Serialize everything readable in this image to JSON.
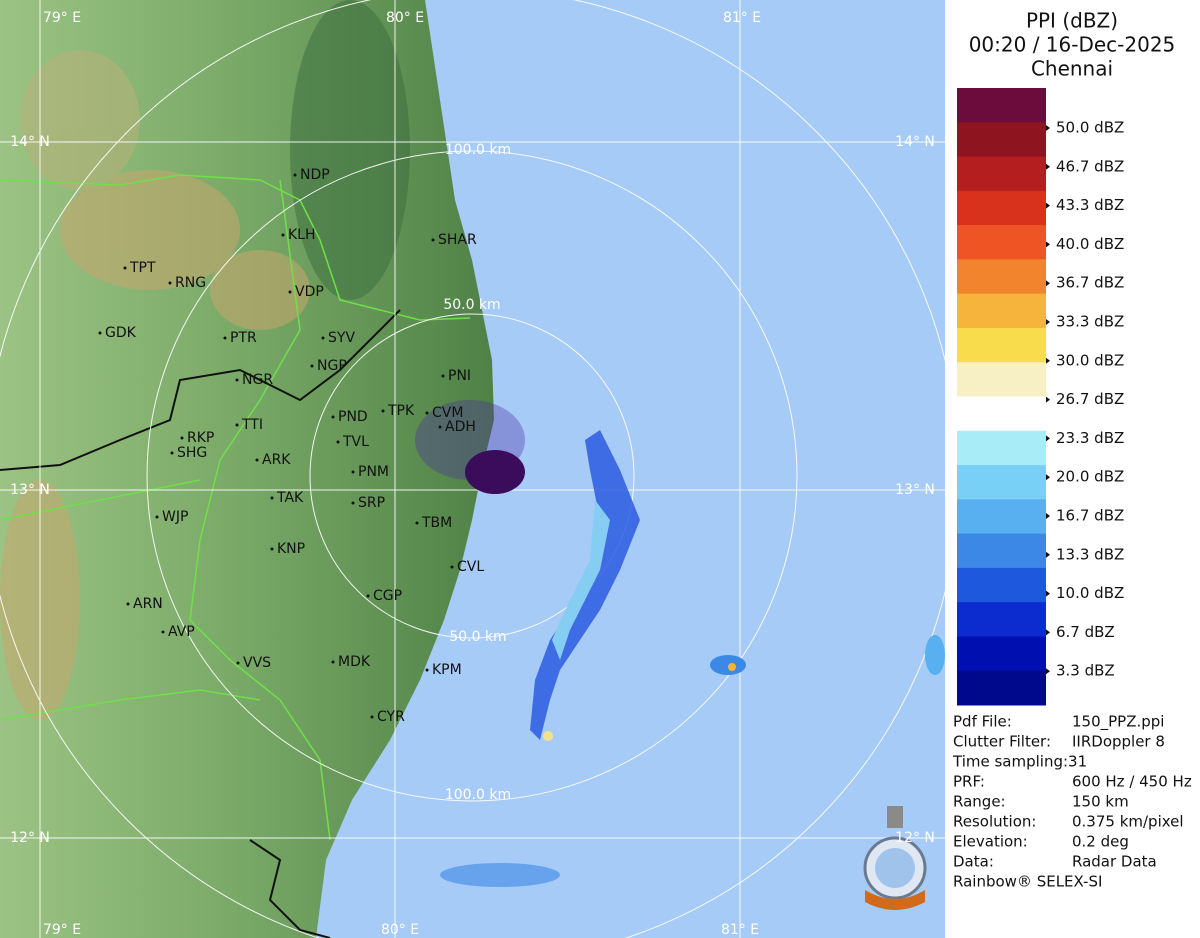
{
  "panel": {
    "title": "PPI (dBZ)",
    "time": "00:20 / 16-Dec-2025",
    "station": "Chennai",
    "legend": {
      "labels": [
        "50.0 dBZ",
        "46.7 dBZ",
        "43.3 dBZ",
        "40.0 dBZ",
        "36.7 dBZ",
        "33.3 dBZ",
        "30.0 dBZ",
        "26.7 dBZ",
        "23.3 dBZ",
        "20.0 dBZ",
        "16.7 dBZ",
        "13.3 dBZ",
        "10.0 dBZ",
        "6.7 dBZ",
        "3.3 dBZ"
      ],
      "colors": [
        "#6b0c3c",
        "#8e1420",
        "#b41e1e",
        "#d8321c",
        "#ee5424",
        "#f2842e",
        "#f6b43c",
        "#f8dc4c",
        "#f6f0c4",
        "#ffffff",
        "#a8ecf8",
        "#78d0f6",
        "#58b0f0",
        "#3c88e6",
        "#1e58dc",
        "#0c2cd0",
        "#0010b0",
        "#00088c"
      ]
    },
    "info": [
      [
        "Pdf File:",
        "150_PPZ.ppi"
      ],
      [
        "Clutter Filter:",
        "IIRDoppler 8"
      ],
      [
        "Time sampling:31"
      ],
      [
        "PRF:",
        "600 Hz / 450 Hz"
      ],
      [
        "Range:",
        "150 km"
      ],
      [
        "Resolution:",
        "0.375 km/pixel"
      ],
      [
        "Elevation:",
        "0.2 deg"
      ],
      [
        "Data:",
        "Radar Data"
      ],
      [
        "Rainbow® SELEX-SI"
      ]
    ]
  },
  "map": {
    "grid_labels": [
      "79° E",
      "80° E",
      "81° E",
      "79° E",
      "80° E",
      "81° E",
      "14° N",
      "14° N",
      "13° N",
      "13° N",
      "12° N",
      "12° N"
    ],
    "range_labels": [
      "100.0 km",
      "50.0 km",
      "50.0 km",
      "100.0 km"
    ],
    "stations": [
      "NDP",
      "SHAR",
      "KLH",
      "TPT",
      "RNG",
      "VDP",
      "GDK",
      "PTR",
      "SYV",
      "NGP",
      "PNI",
      "NGR",
      "PND",
      "TPK",
      "CVM",
      "ADH",
      "TTI",
      "RKP",
      "TVL",
      "SHG",
      "ARK",
      "PNM",
      "TAK",
      "SRP",
      "TBM",
      "WJP",
      "KNP",
      "CVL",
      "CGP",
      "ARN",
      "AVP",
      "VVS",
      "MDK",
      "KPM",
      "CYR"
    ]
  }
}
